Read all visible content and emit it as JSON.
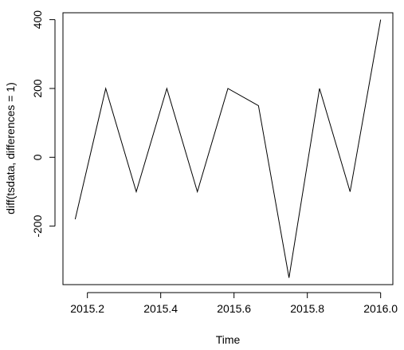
{
  "chart_data": {
    "type": "line",
    "title": "",
    "xlabel": "Time",
    "ylabel": "diff(tsdata, differences = 1)",
    "x": [
      2015.1667,
      2015.25,
      2015.3333,
      2015.4167,
      2015.5,
      2015.5833,
      2015.6667,
      2015.75,
      2015.8333,
      2015.9167,
      2016.0
    ],
    "y": [
      -180,
      200,
      -100,
      200,
      -100,
      200,
      150,
      -350,
      200,
      -100,
      400
    ],
    "xlim": [
      2015.1333,
      2016.0333
    ],
    "ylim": [
      -370,
      420
    ],
    "xticks": [
      2015.2,
      2015.4,
      2015.6,
      2015.8,
      2016.0
    ],
    "xtick_labels": [
      "2015.2",
      "2015.4",
      "2015.6",
      "2015.8",
      "2016.0"
    ],
    "yticks": [
      -200,
      0,
      200,
      400
    ],
    "ytick_labels": [
      "-200",
      "0",
      "200",
      "400"
    ],
    "grid": false,
    "line_color": "#000000"
  }
}
